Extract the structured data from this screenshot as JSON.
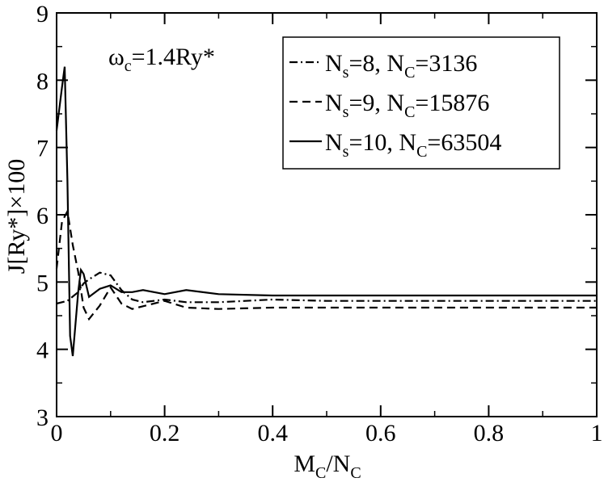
{
  "chart_data": {
    "type": "line",
    "title": "",
    "xlabel": {
      "base": "M",
      "sub1": "C",
      "mid": "/N",
      "sub2": "C"
    },
    "ylabel": "J[Ry*]×100",
    "xlim": [
      0,
      1
    ],
    "ylim": [
      3,
      9
    ],
    "x_ticks": [
      0,
      0.2,
      0.4,
      0.6,
      0.8,
      1
    ],
    "x_tick_labels": [
      "0",
      "0.2",
      "0.4",
      "0.6",
      "0.8",
      "1"
    ],
    "y_ticks": [
      3,
      4,
      5,
      6,
      7,
      8,
      9
    ],
    "y_tick_labels": [
      "3",
      "4",
      "5",
      "6",
      "7",
      "8",
      "9"
    ],
    "grid": false,
    "legend_position": "top-right",
    "annotation": {
      "base": "ω",
      "sub": "c",
      "rest": "=1.4Ry*"
    },
    "series": [
      {
        "legend": {
          "a": "N",
          "a_sub": "s",
          "b": "=8, N",
          "b_sub": "C",
          "c": "=3136"
        },
        "dash": "dashdot",
        "x": [
          0.0,
          0.02,
          0.04,
          0.05,
          0.06,
          0.08,
          0.1,
          0.12,
          0.14,
          0.16,
          0.2,
          0.24,
          0.3,
          0.4,
          0.5,
          0.7,
          1.0
        ],
        "y": [
          4.68,
          4.72,
          4.85,
          4.98,
          5.04,
          5.14,
          5.1,
          4.88,
          4.74,
          4.7,
          4.74,
          4.7,
          4.7,
          4.74,
          4.72,
          4.72,
          4.72
        ]
      },
      {
        "legend": {
          "a": "N",
          "a_sub": "s",
          "b": "=9, N",
          "b_sub": "C",
          "c": "=15876"
        },
        "dash": "dashed",
        "x": [
          0.0,
          0.01,
          0.02,
          0.03,
          0.04,
          0.05,
          0.06,
          0.08,
          0.1,
          0.12,
          0.14,
          0.16,
          0.2,
          0.24,
          0.3,
          0.4,
          0.5,
          0.7,
          1.0
        ],
        "y": [
          5.2,
          5.9,
          6.05,
          5.55,
          5.15,
          4.62,
          4.45,
          4.65,
          4.92,
          4.68,
          4.6,
          4.64,
          4.72,
          4.62,
          4.6,
          4.62,
          4.62,
          4.62,
          4.62
        ]
      },
      {
        "legend": {
          "a": "N",
          "a_sub": "s",
          "b": "=10, N",
          "b_sub": "C",
          "c": "=63504"
        },
        "dash": "solid",
        "x": [
          0.0,
          0.01,
          0.015,
          0.02,
          0.025,
          0.03,
          0.04,
          0.045,
          0.05,
          0.06,
          0.08,
          0.1,
          0.12,
          0.14,
          0.16,
          0.2,
          0.24,
          0.3,
          0.4,
          0.6,
          1.0
        ],
        "y": [
          7.25,
          7.9,
          8.2,
          6.5,
          4.2,
          3.9,
          4.85,
          5.18,
          5.12,
          4.78,
          4.9,
          4.95,
          4.85,
          4.85,
          4.88,
          4.82,
          4.88,
          4.82,
          4.8,
          4.8,
          4.8
        ]
      }
    ]
  }
}
